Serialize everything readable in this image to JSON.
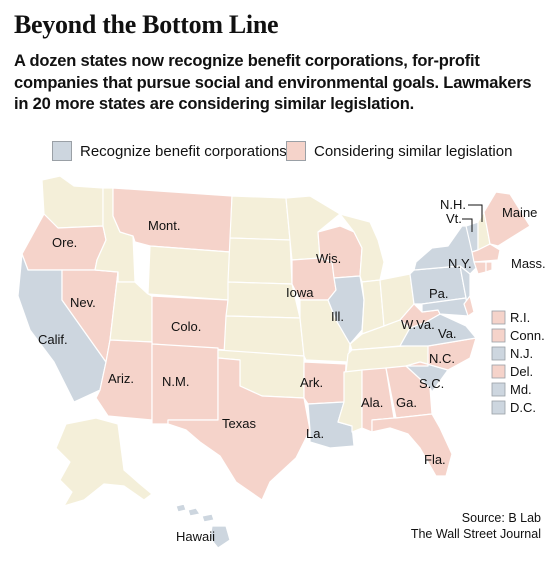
{
  "header": {
    "title": "Beyond the Bottom Line",
    "subtitle": "A dozen states now recognize benefit corporations, for-profit companies that pursue social and environmental goals. Lawmakers in 20 more states are considering similar legislation."
  },
  "legend": {
    "recognize_label": "Recognize benefit corporations",
    "considering_label": "Considering similar legislation"
  },
  "colors": {
    "recognize": "#cdd6df",
    "considering": "#f5d3ca",
    "neutral": "#f4efd9",
    "border": "#ffffff",
    "land_stroke": "#d8d0b8"
  },
  "map_labels": {
    "ore": "Ore.",
    "calif": "Calif.",
    "nev": "Nev.",
    "mont": "Mont.",
    "colo": "Colo.",
    "ariz": "Ariz.",
    "nm": "N.M.",
    "texas": "Texas",
    "iowa": "Iowa",
    "wis": "Wis.",
    "ill": "Ill.",
    "ark": "Ark.",
    "la": "La.",
    "ala": "Ala.",
    "ga": "Ga.",
    "fla": "Fla.",
    "sc": "S.C.",
    "nc": "N.C.",
    "va": "Va.",
    "wva": "W.Va.",
    "pa": "Pa.",
    "ny": "N.Y.",
    "nh": "N.H.",
    "vt": "Vt.",
    "maine": "Maine",
    "mass": "Mass.",
    "hawaii": "Hawaii"
  },
  "small_states": [
    {
      "label": "R.I.",
      "status": "considering"
    },
    {
      "label": "Conn.",
      "status": "considering"
    },
    {
      "label": "N.J.",
      "status": "recognize"
    },
    {
      "label": "Del.",
      "status": "considering"
    },
    {
      "label": "Md.",
      "status": "recognize"
    },
    {
      "label": "D.C.",
      "status": "recognize"
    }
  ],
  "source": {
    "line1": "Source: B Lab",
    "line2": "The Wall Street Journal"
  }
}
